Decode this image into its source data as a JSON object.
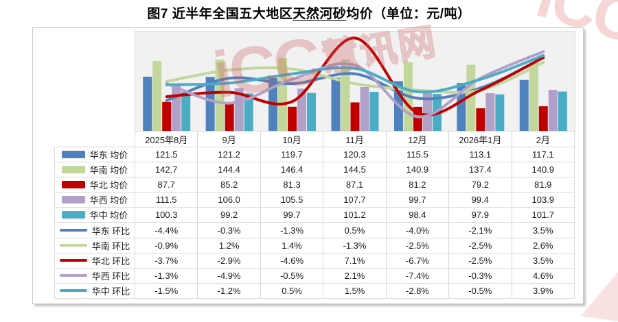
{
  "title": {
    "prefix": "图7 近半年全国五大地区",
    "underlined": "天然河砂",
    "suffix": "均价（单位：元/吨）"
  },
  "watermark": {
    "logo": "iCC",
    "cn": "慧讯网"
  },
  "colors": {
    "east": "#4F81BD",
    "south": "#C3D69B",
    "north": "#C00000",
    "west": "#B1A0C7",
    "central": "#4BACC6",
    "grid": "#D9D9D9",
    "plot_bg": "#F1F1F2"
  },
  "chart_data": {
    "type": "bar+line",
    "categories": [
      "2025年8月",
      "9月",
      "10月",
      "11月",
      "12月",
      "2026年1月",
      "2月"
    ],
    "bar_axis": {
      "min": 49,
      "max": 182
    },
    "line_axis": {
      "min": -10.0,
      "max": 8.3
    },
    "legend_position": "table-left",
    "grid": "off",
    "bar_series": [
      {
        "label": "华东 均价",
        "color": "#4F81BD",
        "values": [
          121.5,
          121.2,
          119.7,
          120.3,
          115.5,
          113.1,
          117.1
        ],
        "display": [
          "121.5",
          "121.2",
          "119.7",
          "120.3",
          "115.5",
          "113.1",
          "117.1"
        ]
      },
      {
        "label": "华南 均价",
        "color": "#C3D69B",
        "values": [
          142.7,
          144.4,
          146.4,
          144.5,
          140.9,
          137.4,
          140.9
        ],
        "display": [
          "142.7",
          "144.4",
          "146.4",
          "144.5",
          "140.9",
          "137.4",
          "140.9"
        ]
      },
      {
        "label": "华北 均价",
        "color": "#C00000",
        "values": [
          87.7,
          85.2,
          81.3,
          87.1,
          81.2,
          79.2,
          81.9
        ],
        "display": [
          "87.7",
          "85.2",
          "81.3",
          "87.1",
          "81.2",
          "79.2",
          "81.9"
        ]
      },
      {
        "label": "华西 均价",
        "color": "#B1A0C7",
        "values": [
          111.5,
          106.0,
          105.5,
          107.7,
          99.7,
          99.4,
          103.9
        ],
        "display": [
          "111.5",
          "106.0",
          "105.5",
          "107.7",
          "99.7",
          "99.4",
          "103.9"
        ]
      },
      {
        "label": "华中 均价",
        "color": "#4BACC6",
        "values": [
          100.3,
          99.2,
          99.7,
          101.2,
          98.4,
          97.9,
          101.7
        ],
        "display": [
          "100.3",
          "99.2",
          "99.7",
          "101.2",
          "98.4",
          "97.9",
          "101.7"
        ]
      }
    ],
    "line_series": [
      {
        "label": "华东 环比",
        "color": "#4F81BD",
        "values": [
          -4.4,
          -0.3,
          -1.3,
          0.5,
          -4.0,
          -2.1,
          3.5
        ],
        "display": [
          "-4.4%",
          "-0.3%",
          "-1.3%",
          "0.5%",
          "-4.0%",
          "-2.1%",
          "3.5%"
        ]
      },
      {
        "label": "华南 环比",
        "color": "#C3D69B",
        "values": [
          -0.9,
          1.2,
          1.4,
          -1.3,
          -2.5,
          -2.5,
          2.6
        ],
        "display": [
          "-0.9%",
          "1.2%",
          "1.4%",
          "-1.3%",
          "-2.5%",
          "-2.5%",
          "2.6%"
        ]
      },
      {
        "label": "华北 环比",
        "color": "#C00000",
        "values": [
          -3.7,
          -2.9,
          -4.6,
          7.1,
          -6.7,
          -2.5,
          3.5
        ],
        "display": [
          "-3.7%",
          "-2.9%",
          "-4.6%",
          "7.1%",
          "-6.7%",
          "-2.5%",
          "3.5%"
        ]
      },
      {
        "label": "华西 环比",
        "color": "#B1A0C7",
        "values": [
          -1.3,
          -4.9,
          -0.5,
          2.1,
          -7.4,
          -0.3,
          4.6
        ],
        "display": [
          "-1.3%",
          "-4.9%",
          "-0.5%",
          "2.1%",
          "-7.4%",
          "-0.3%",
          "4.6%"
        ]
      },
      {
        "label": "华中 环比",
        "color": "#4BACC6",
        "values": [
          -1.5,
          -1.2,
          0.5,
          1.5,
          -2.8,
          -0.5,
          3.9
        ],
        "display": [
          "-1.5%",
          "-1.2%",
          "0.5%",
          "1.5%",
          "-2.8%",
          "-0.5%",
          "3.9%"
        ]
      }
    ]
  }
}
